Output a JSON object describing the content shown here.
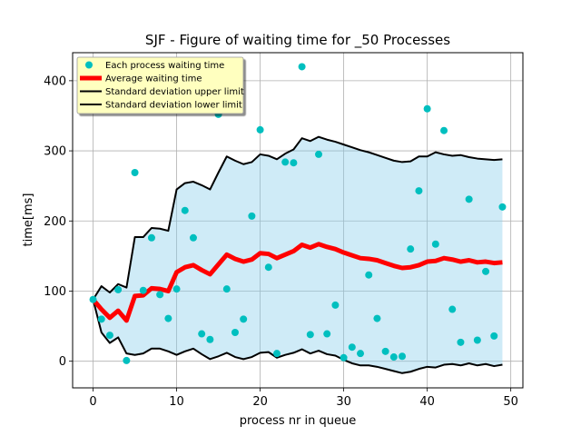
{
  "chart_data": {
    "type": "line",
    "title": "SJF - Figure of waiting time for _50 Processes",
    "xlabel": "process nr in queue",
    "ylabel": "time[ms]",
    "xlim": [
      -2.45,
      51.45
    ],
    "ylim": [
      -38,
      440
    ],
    "xticks": [
      0,
      10,
      20,
      30,
      40,
      50
    ],
    "xtick_labels": [
      "0",
      "10",
      "20",
      "30",
      "40",
      "50"
    ],
    "yticks": [
      0,
      100,
      200,
      300,
      400
    ],
    "ytick_labels": [
      "0",
      "100",
      "200",
      "300",
      "400"
    ],
    "grid": true,
    "legend_position": "top-left",
    "x": [
      0,
      1,
      2,
      3,
      4,
      5,
      6,
      7,
      8,
      9,
      10,
      11,
      12,
      13,
      14,
      15,
      16,
      17,
      18,
      19,
      20,
      21,
      22,
      23,
      24,
      25,
      26,
      27,
      28,
      29,
      30,
      31,
      32,
      33,
      34,
      35,
      36,
      37,
      38,
      39,
      40,
      41,
      42,
      43,
      44,
      45,
      46,
      47,
      48,
      49
    ],
    "series": [
      {
        "name": "Each process waiting time",
        "kind": "scatter",
        "color": "#00bfbf",
        "values": [
          88,
          60,
          37,
          102,
          1,
          269,
          101,
          176,
          95,
          61,
          103,
          215,
          176,
          39,
          31,
          352,
          103,
          41,
          60,
          207,
          330,
          134,
          11,
          284,
          283,
          420,
          38,
          295,
          39,
          80,
          5,
          20,
          11,
          123,
          61,
          14,
          6,
          7,
          160,
          243,
          360,
          167,
          329,
          74,
          27,
          231,
          30,
          128,
          36,
          220
        ]
      },
      {
        "name": "Average waiting time",
        "kind": "line",
        "color": "#ff0000",
        "values": [
          88,
          74,
          62,
          72,
          58,
          93,
          94,
          104,
          103,
          100,
          127,
          134,
          137,
          130,
          124,
          138,
          152,
          146,
          142,
          145,
          154,
          153,
          147,
          152,
          157,
          166,
          162,
          167,
          163,
          160,
          155,
          151,
          147,
          146,
          144,
          140,
          136,
          133,
          134,
          137,
          142,
          143,
          147,
          145,
          142,
          144,
          141,
          142,
          140,
          141
        ]
      },
      {
        "name": "Standard deviation upper limit",
        "kind": "line",
        "color": "#000000",
        "values": [
          88,
          107,
          98,
          110,
          105,
          177,
          177,
          190,
          189,
          186,
          245,
          254,
          256,
          251,
          245,
          269,
          292,
          286,
          281,
          284,
          295,
          293,
          288,
          296,
          302,
          318,
          314,
          320,
          316,
          313,
          309,
          305,
          301,
          298,
          294,
          290,
          286,
          284,
          285,
          292,
          292,
          298,
          295,
          293,
          294,
          291,
          289,
          288,
          287,
          288
        ]
      },
      {
        "name": "Standard deviation lower limit",
        "kind": "line",
        "color": "#000000",
        "values": [
          88,
          41,
          26,
          34,
          11,
          9,
          11,
          18,
          18,
          14,
          9,
          14,
          18,
          10,
          3,
          7,
          12,
          6,
          3,
          6,
          12,
          13,
          5,
          9,
          12,
          17,
          11,
          15,
          10,
          8,
          2,
          -3,
          -6,
          -6,
          -8,
          -11,
          -14,
          -17,
          -15,
          -11,
          -8,
          -9,
          -5,
          -4,
          -6,
          -3,
          -6,
          -4,
          -7,
          -5
        ]
      }
    ],
    "band": {
      "between": [
        "Standard deviation lower limit",
        "Standard deviation upper limit"
      ],
      "color": "#87ceeb",
      "opacity": 0.4
    },
    "legend": {
      "background": "#ffffbf",
      "entries": [
        "Each process waiting time",
        "Average waiting time",
        "Standard deviation upper limit",
        "Standard deviation lower limit"
      ]
    }
  }
}
